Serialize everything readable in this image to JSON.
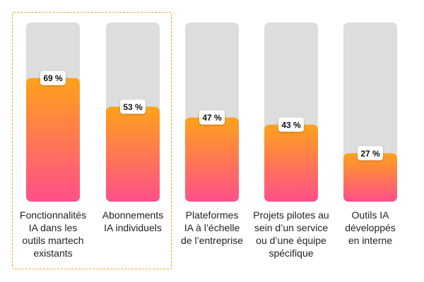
{
  "chart_data": {
    "type": "bar",
    "categories": [
      "Fonctionnalités\nIA dans les\noutils martech\nexistants",
      "Abonnements\nIA individuels",
      "Plateformes\nIA à l’échelle\nde l’entreprise",
      "Projets pilotes au\nsein d’un service\nou d’une équipe\nspécifique",
      "Outils IA\ndéveloppés\nen interne"
    ],
    "values": [
      69,
      53,
      47,
      43,
      27
    ],
    "value_labels": [
      "69 %",
      "53 %",
      "47 %",
      "43 %",
      "27 %"
    ],
    "ylim": [
      0,
      100
    ],
    "highlighted_categories": [
      0,
      1
    ],
    "colors": {
      "bar_top": "#ffa21a",
      "bar_bottom": "#ff4f8b",
      "track": "#dddddd",
      "label_text": "#111111",
      "highlight_border": "#f5a623"
    }
  }
}
